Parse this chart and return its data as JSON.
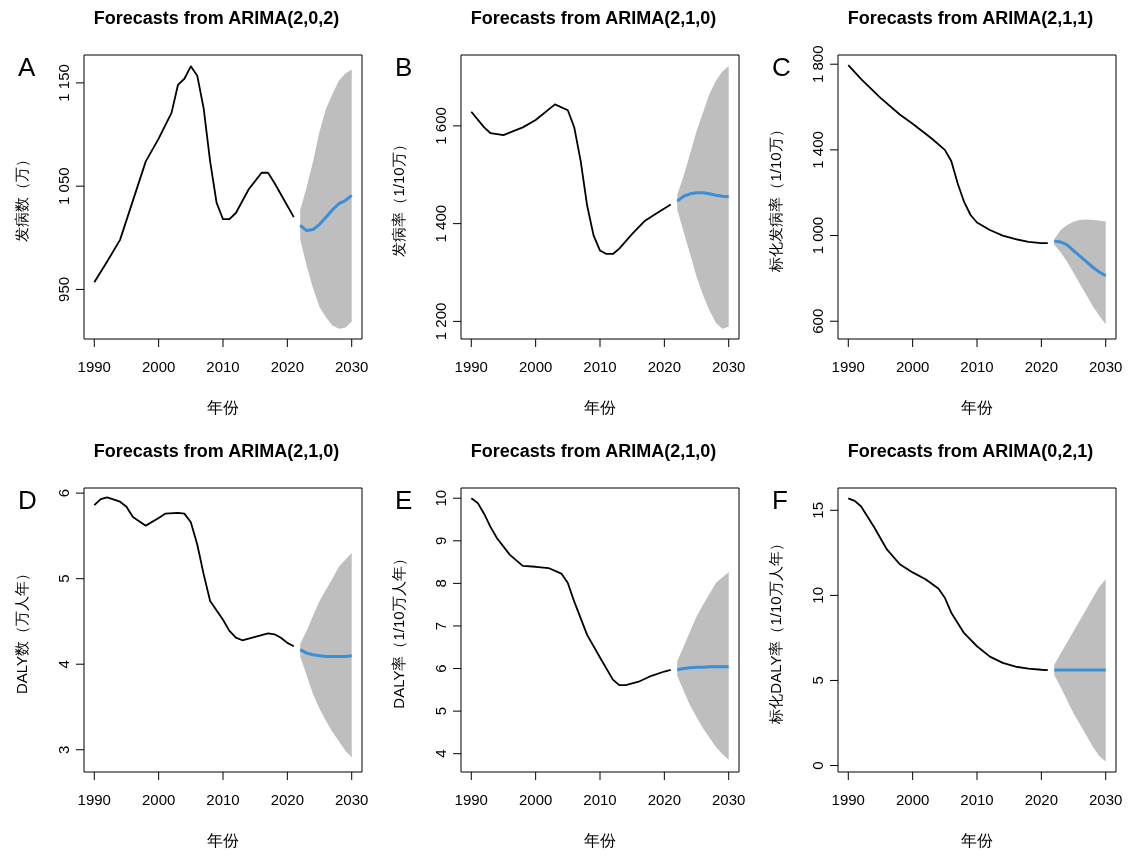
{
  "chart_data": [
    {
      "type": "line",
      "title": "Forecasts from ARIMA(2,0,2)",
      "xlabel": "年份",
      "ylabel": "发病数（万）",
      "annotations": [
        "A"
      ],
      "xlim": [
        1988.4,
        2031.6
      ],
      "xticks": [
        1990,
        2000,
        2010,
        2020,
        2030
      ],
      "ylim": [
        902,
        1177
      ],
      "yticks": [
        950,
        {
          "value": 1050,
          "label": "1 050"
        },
        {
          "value": 1150,
          "label": "1 150"
        }
      ],
      "grid": false,
      "series": [
        {
          "color": "#000000",
          "x": [
            1990,
            1992,
            1994,
            1998,
            2000,
            2002,
            2003,
            2004,
            2005,
            2006,
            2007,
            2008,
            2009,
            2010,
            2011,
            2012,
            2014,
            2016,
            2017,
            2018,
            2020,
            2021
          ],
          "values": [
            957,
            977,
            998,
            1074,
            1096,
            1121,
            1148,
            1154,
            1166,
            1157,
            1125,
            1074,
            1034,
            1018,
            1018,
            1024,
            1047,
            1063,
            1063,
            1053,
            1031,
            1020
          ]
        },
        {
          "color": "#3a8fd8",
          "x": [
            2022,
            2023,
            2024,
            2025,
            2026,
            2027,
            2028,
            2029,
            2030
          ],
          "values": [
            1012,
            1007,
            1008,
            1013,
            1020,
            1027,
            1033,
            1036,
            1041
          ],
          "lower": [
            998,
            973,
            951,
            933,
            923,
            915,
            912,
            913,
            919
          ],
          "upper": [
            1027,
            1049,
            1074,
            1103,
            1125,
            1139,
            1152,
            1159,
            1163
          ]
        }
      ]
    },
    {
      "type": "line",
      "title": "Forecasts from ARIMA(2,1,0)",
      "xlabel": "年份",
      "ylabel": "发病率（1/10万）",
      "annotations": [
        "B"
      ],
      "xlim": [
        1988.4,
        2031.6
      ],
      "xticks": [
        1990,
        2000,
        2010,
        2020,
        2030
      ],
      "ylim": [
        1164,
        1745
      ],
      "yticks": [
        {
          "value": 1200,
          "label": "1 200"
        },
        {
          "value": 1400,
          "label": "1 400"
        },
        {
          "value": 1600,
          "label": "1 600"
        }
      ],
      "grid": false,
      "series": [
        {
          "color": "#000000",
          "x": [
            1990,
            1992,
            1993,
            1995,
            1998,
            2000,
            2003,
            2005,
            2006,
            2007,
            2008,
            2009,
            2010,
            2011,
            2012,
            2013,
            2015,
            2017,
            2019,
            2021
          ],
          "values": [
            1629,
            1597,
            1585,
            1581,
            1597,
            1612,
            1644,
            1632,
            1597,
            1528,
            1437,
            1376,
            1345,
            1338,
            1338,
            1349,
            1379,
            1406,
            1423,
            1439
          ]
        },
        {
          "color": "#3a8fd8",
          "x": [
            2022,
            2023,
            2024,
            2025,
            2026,
            2027,
            2028,
            2029,
            2030
          ],
          "values": [
            1446,
            1456,
            1461,
            1463,
            1463,
            1461,
            1458,
            1456,
            1455
          ],
          "lower": [
            1429,
            1383,
            1338,
            1292,
            1254,
            1223,
            1197,
            1185,
            1189
          ],
          "upper": [
            1459,
            1498,
            1543,
            1589,
            1627,
            1665,
            1692,
            1711,
            1722
          ]
        }
      ]
    },
    {
      "type": "line",
      "title": "Forecasts from ARIMA(2,1,1)",
      "xlabel": "年份",
      "ylabel": "标化发病率（1/10万）",
      "annotations": [
        "C"
      ],
      "xlim": [
        1988.4,
        2031.6
      ],
      "xticks": [
        1990,
        2000,
        2010,
        2020,
        2030
      ],
      "ylim": [
        517,
        1843
      ],
      "yticks": [
        600,
        {
          "value": 1000,
          "label": "1 000"
        },
        {
          "value": 1400,
          "label": "1 400"
        },
        {
          "value": 1800,
          "label": "1 800"
        }
      ],
      "grid": false,
      "series": [
        {
          "color": "#000000",
          "x": [
            1990,
            1992,
            1995,
            1998,
            2000,
            2003,
            2005,
            2006,
            2007,
            2008,
            2009,
            2010,
            2012,
            2014,
            2016,
            2018,
            2020,
            2021
          ],
          "values": [
            1796,
            1730,
            1643,
            1565,
            1522,
            1452,
            1400,
            1348,
            1243,
            1157,
            1096,
            1061,
            1026,
            1000,
            983,
            970,
            965,
            965
          ]
        },
        {
          "color": "#3a8fd8",
          "x": [
            2022,
            2023,
            2024,
            2025,
            2026,
            2027,
            2028,
            2029,
            2030
          ],
          "values": [
            974,
            970,
            957,
            930,
            904,
            878,
            852,
            830,
            812
          ],
          "lower": [
            957,
            922,
            878,
            826,
            774,
            722,
            670,
            626,
            586
          ],
          "upper": [
            983,
            1026,
            1049,
            1064,
            1073,
            1075,
            1073,
            1070,
            1066
          ]
        }
      ]
    },
    {
      "type": "line",
      "title": "Forecasts from ARIMA(2,1,0)",
      "xlabel": "年份",
      "ylabel": "DALY数（万人年）",
      "annotations": [
        "D"
      ],
      "xlim": [
        1988.4,
        2031.6
      ],
      "xticks": [
        1990,
        2000,
        2010,
        2020,
        2030
      ],
      "ylim": [
        2.74,
        6.06
      ],
      "yticks": [
        3,
        4,
        5,
        6
      ],
      "grid": false,
      "series": [
        {
          "color": "#000000",
          "x": [
            1990,
            1991,
            1992,
            1994,
            1995,
            1996,
            1998,
            2000,
            2001,
            2003,
            2004,
            2005,
            2006,
            2007,
            2008,
            2010,
            2011,
            2012,
            2013,
            2015,
            2017,
            2018,
            2019,
            2020,
            2021
          ],
          "values": [
            5.86,
            5.93,
            5.95,
            5.9,
            5.84,
            5.72,
            5.62,
            5.71,
            5.76,
            5.77,
            5.76,
            5.66,
            5.4,
            5.05,
            4.74,
            4.52,
            4.39,
            4.31,
            4.28,
            4.32,
            4.36,
            4.35,
            4.31,
            4.25,
            4.21
          ]
        },
        {
          "color": "#3a8fd8",
          "x": [
            2022,
            2023,
            2024,
            2025,
            2026,
            2027,
            2028,
            2029,
            2030
          ],
          "values": [
            4.17,
            4.13,
            4.11,
            4.1,
            4.09,
            4.09,
            4.09,
            4.09,
            4.1
          ],
          "lower": [
            4.09,
            3.87,
            3.65,
            3.48,
            3.34,
            3.21,
            3.1,
            2.99,
            2.91
          ],
          "upper": [
            4.24,
            4.39,
            4.57,
            4.74,
            4.87,
            5.0,
            5.14,
            5.22,
            5.3
          ]
        }
      ]
    },
    {
      "type": "line",
      "title": "Forecasts from ARIMA(2,1,0)",
      "xlabel": "年份",
      "ylabel": "DALY率（1/10万人年）",
      "annotations": [
        "E"
      ],
      "xlim": [
        1988.4,
        2031.6
      ],
      "xticks": [
        1990,
        2000,
        2010,
        2020,
        2030
      ],
      "ylim": [
        3.57,
        10.24
      ],
      "yticks": [
        4,
        5,
        6,
        7,
        8,
        9,
        10
      ],
      "grid": false,
      "series": [
        {
          "color": "#000000",
          "x": [
            1990,
            1991,
            1992,
            1993,
            1994,
            1996,
            1998,
            2000,
            2002,
            2004,
            2005,
            2006,
            2008,
            2010,
            2012,
            2013,
            2014,
            2016,
            2018,
            2020,
            2021
          ],
          "values": [
            10.0,
            9.89,
            9.63,
            9.32,
            9.06,
            8.67,
            8.41,
            8.39,
            8.36,
            8.23,
            8.01,
            7.57,
            6.79,
            6.26,
            5.74,
            5.61,
            5.61,
            5.69,
            5.83,
            5.93,
            5.97
          ]
        },
        {
          "color": "#3a8fd8",
          "x": [
            2022,
            2023,
            2024,
            2025,
            2026,
            2027,
            2028,
            2029,
            2030
          ],
          "values": [
            5.97,
            6.0,
            6.02,
            6.03,
            6.03,
            6.04,
            6.04,
            6.04,
            6.04
          ],
          "lower": [
            5.83,
            5.48,
            5.13,
            4.86,
            4.6,
            4.38,
            4.16,
            3.99,
            3.86
          ],
          "upper": [
            6.17,
            6.52,
            6.87,
            7.22,
            7.49,
            7.75,
            8.01,
            8.14,
            8.27
          ]
        }
      ]
    },
    {
      "type": "line",
      "title": "Forecasts from ARIMA(0,2,1)",
      "xlabel": "年份",
      "ylabel": "标化DALY率（1/10万人年）",
      "annotations": [
        "F"
      ],
      "xlim": [
        1988.4,
        2031.6
      ],
      "xticks": [
        1990,
        2000,
        2010,
        2020,
        2030
      ],
      "ylim": [
        -0.38,
        16.31
      ],
      "yticks": [
        0,
        5,
        10,
        15
      ],
      "grid": false,
      "series": [
        {
          "color": "#000000",
          "x": [
            1990,
            1991,
            1992,
            1994,
            1996,
            1998,
            2000,
            2002,
            2004,
            2005,
            2006,
            2008,
            2010,
            2012,
            2014,
            2016,
            2018,
            2020,
            2021
          ],
          "values": [
            15.7,
            15.55,
            15.22,
            14.02,
            12.7,
            11.83,
            11.35,
            10.95,
            10.4,
            9.86,
            8.98,
            7.78,
            7.01,
            6.4,
            6.03,
            5.81,
            5.7,
            5.63,
            5.61
          ]
        },
        {
          "color": "#3a8fd8",
          "x": [
            2022,
            2023,
            2024,
            2025,
            2026,
            2027,
            2028,
            2029,
            2030
          ],
          "values": [
            5.61,
            5.61,
            5.61,
            5.61,
            5.61,
            5.61,
            5.61,
            5.61,
            5.61
          ],
          "lower": [
            5.31,
            4.61,
            3.84,
            3.07,
            2.42,
            1.76,
            1.11,
            0.56,
            0.23
          ],
          "upper": [
            5.92,
            6.58,
            7.23,
            7.89,
            8.54,
            9.2,
            9.86,
            10.51,
            10.95
          ]
        }
      ]
    }
  ]
}
